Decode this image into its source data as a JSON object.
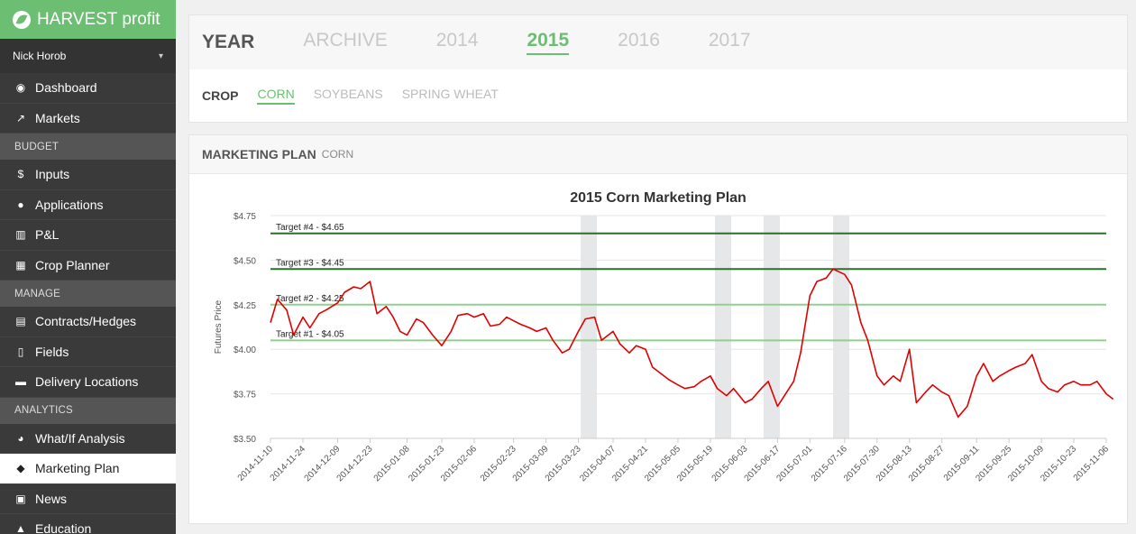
{
  "brand": {
    "name": "HARVEST profit"
  },
  "user": {
    "name": "Nick Horob"
  },
  "sidebar": {
    "items": [
      {
        "type": "item",
        "label": "Dashboard",
        "icon": "dashboard-icon",
        "glyph": "◉"
      },
      {
        "type": "item",
        "label": "Markets",
        "icon": "line-chart-icon",
        "glyph": "↗"
      },
      {
        "type": "section",
        "label": "BUDGET"
      },
      {
        "type": "item",
        "label": "Inputs",
        "icon": "dollar-icon",
        "glyph": "$"
      },
      {
        "type": "item",
        "label": "Applications",
        "icon": "droplet-icon",
        "glyph": "●"
      },
      {
        "type": "item",
        "label": "P&L",
        "icon": "bar-chart-icon",
        "glyph": "▥"
      },
      {
        "type": "item",
        "label": "Crop Planner",
        "icon": "table-icon",
        "glyph": "▦"
      },
      {
        "type": "section",
        "label": "MANAGE"
      },
      {
        "type": "item",
        "label": "Contracts/Hedges",
        "icon": "document-icon",
        "glyph": "▤"
      },
      {
        "type": "item",
        "label": "Fields",
        "icon": "map-icon",
        "glyph": "▯"
      },
      {
        "type": "item",
        "label": "Delivery Locations",
        "icon": "truck-icon",
        "glyph": "▬"
      },
      {
        "type": "section",
        "label": "ANALYTICS"
      },
      {
        "type": "item",
        "label": "What/If Analysis",
        "icon": "pie-chart-icon",
        "glyph": "◕"
      },
      {
        "type": "item",
        "label": "Marketing Plan",
        "icon": "tag-icon",
        "glyph": "◆",
        "active": true
      },
      {
        "type": "item",
        "label": "News",
        "icon": "newspaper-icon",
        "glyph": "▣"
      },
      {
        "type": "item",
        "label": "Education",
        "icon": "graduation-icon",
        "glyph": "▲"
      }
    ]
  },
  "year_bar": {
    "label": "YEAR",
    "tabs": [
      {
        "label": "ARCHIVE",
        "active": false
      },
      {
        "label": "2014",
        "active": false
      },
      {
        "label": "2015",
        "active": true
      },
      {
        "label": "2016",
        "active": false
      },
      {
        "label": "2017",
        "active": false
      }
    ]
  },
  "crop_bar": {
    "label": "CROP",
    "tabs": [
      {
        "label": "CORN",
        "active": true
      },
      {
        "label": "SOYBEANS",
        "active": false
      },
      {
        "label": "SPRING WHEAT",
        "active": false
      }
    ]
  },
  "plan": {
    "title": "MARKETING PLAN",
    "crop": "CORN"
  },
  "colors": {
    "accent": "#6cbf72",
    "line": "#e00000",
    "target_dark": "#2d6e2d",
    "target_light": "#8fd08f",
    "band": "#e6e7e8"
  },
  "chart_data": {
    "type": "line",
    "title": "2015 Corn Marketing Plan",
    "xlabel": "",
    "ylabel": "Futures Price",
    "ylim": [
      3.5,
      4.75
    ],
    "yticks": [
      "$3.50",
      "$3.75",
      "$4.00",
      "$4.25",
      "$4.50",
      "$4.75"
    ],
    "ytick_values": [
      3.5,
      3.75,
      4.0,
      4.25,
      4.5,
      4.75
    ],
    "xticks": [
      "2014-11-10",
      "2014-11-24",
      "2014-12-09",
      "2014-12-23",
      "2015-01-08",
      "2015-01-23",
      "2015-02-06",
      "2015-02-23",
      "2015-03-09",
      "2015-03-23",
      "2015-04-07",
      "2015-04-21",
      "2015-05-05",
      "2015-05-19",
      "2015-06-03",
      "2015-06-17",
      "2015-07-01",
      "2015-07-16",
      "2015-07-30",
      "2015-08-13",
      "2015-08-27",
      "2015-09-11",
      "2015-09-25",
      "2015-10-09",
      "2015-10-23",
      "2015-11-06"
    ],
    "grid": true,
    "targets": [
      {
        "label": "Target #4 - $4.65",
        "value": 4.65,
        "tone": "dark"
      },
      {
        "label": "Target #3 - $4.45",
        "value": 4.45,
        "tone": "dark"
      },
      {
        "label": "Target #2 - $4.25",
        "value": 4.25,
        "tone": "light"
      },
      {
        "label": "Target #1 - $4.05",
        "value": 4.05,
        "tone": "light"
      }
    ],
    "bands": [
      [
        "2015-03-24",
        "2015-03-31"
      ],
      [
        "2015-05-21",
        "2015-05-28"
      ],
      [
        "2015-06-11",
        "2015-06-18"
      ],
      [
        "2015-07-11",
        "2015-07-18"
      ]
    ],
    "series": [
      {
        "x": [
          "2014-11-10",
          "2014-11-13",
          "2014-11-17",
          "2014-11-20",
          "2014-11-24",
          "2014-11-27",
          "2014-12-01",
          "2014-12-04",
          "2014-12-09",
          "2014-12-12",
          "2014-12-16",
          "2014-12-19",
          "2014-12-23",
          "2014-12-26",
          "2014-12-30",
          "2015-01-02",
          "2015-01-05",
          "2015-01-08",
          "2015-01-12",
          "2015-01-15",
          "2015-01-19",
          "2015-01-23",
          "2015-01-27",
          "2015-01-30",
          "2015-02-03",
          "2015-02-06",
          "2015-02-10",
          "2015-02-13",
          "2015-02-17",
          "2015-02-20",
          "2015-02-23",
          "2015-02-26",
          "2015-03-02",
          "2015-03-05",
          "2015-03-09",
          "2015-03-12",
          "2015-03-16",
          "2015-03-19",
          "2015-03-23",
          "2015-03-26",
          "2015-03-30",
          "2015-04-02",
          "2015-04-07",
          "2015-04-10",
          "2015-04-14",
          "2015-04-17",
          "2015-04-21",
          "2015-04-24",
          "2015-04-28",
          "2015-05-01",
          "2015-05-05",
          "2015-05-08",
          "2015-05-12",
          "2015-05-15",
          "2015-05-19",
          "2015-05-22",
          "2015-05-26",
          "2015-05-29",
          "2015-06-03",
          "2015-06-06",
          "2015-06-10",
          "2015-06-13",
          "2015-06-17",
          "2015-06-20",
          "2015-06-24",
          "2015-06-27",
          "2015-07-01",
          "2015-07-04",
          "2015-07-08",
          "2015-07-11",
          "2015-07-16",
          "2015-07-19",
          "2015-07-23",
          "2015-07-26",
          "2015-07-30",
          "2015-08-02",
          "2015-08-06",
          "2015-08-09",
          "2015-08-13",
          "2015-08-16",
          "2015-08-20",
          "2015-08-23",
          "2015-08-27",
          "2015-08-30",
          "2015-09-03",
          "2015-09-07",
          "2015-09-11",
          "2015-09-14",
          "2015-09-18",
          "2015-09-21",
          "2015-09-25",
          "2015-09-28",
          "2015-10-02",
          "2015-10-05",
          "2015-10-09",
          "2015-10-12",
          "2015-10-16",
          "2015-10-19",
          "2015-10-23",
          "2015-10-26",
          "2015-10-30",
          "2015-11-02",
          "2015-11-06",
          "2015-11-09"
        ],
        "y": [
          4.15,
          4.28,
          4.22,
          4.08,
          4.18,
          4.12,
          4.2,
          4.22,
          4.26,
          4.32,
          4.35,
          4.34,
          4.38,
          4.2,
          4.24,
          4.18,
          4.1,
          4.08,
          4.17,
          4.15,
          4.08,
          4.02,
          4.1,
          4.19,
          4.2,
          4.18,
          4.2,
          4.13,
          4.14,
          4.18,
          4.16,
          4.14,
          4.12,
          4.1,
          4.12,
          4.05,
          3.98,
          4.0,
          4.1,
          4.17,
          4.18,
          4.05,
          4.1,
          4.03,
          3.98,
          4.02,
          4.0,
          3.9,
          3.86,
          3.83,
          3.8,
          3.78,
          3.79,
          3.82,
          3.85,
          3.78,
          3.74,
          3.78,
          3.7,
          3.72,
          3.78,
          3.82,
          3.68,
          3.74,
          3.82,
          3.98,
          4.3,
          4.38,
          4.4,
          4.45,
          4.42,
          4.36,
          4.15,
          4.05,
          3.85,
          3.8,
          3.85,
          3.82,
          4.0,
          3.7,
          3.76,
          3.8,
          3.76,
          3.74,
          3.62,
          3.68,
          3.85,
          3.92,
          3.82,
          3.85,
          3.88,
          3.9,
          3.92,
          3.97,
          3.82,
          3.78,
          3.76,
          3.8,
          3.82,
          3.8,
          3.8,
          3.82,
          3.75,
          3.72
        ]
      }
    ]
  }
}
